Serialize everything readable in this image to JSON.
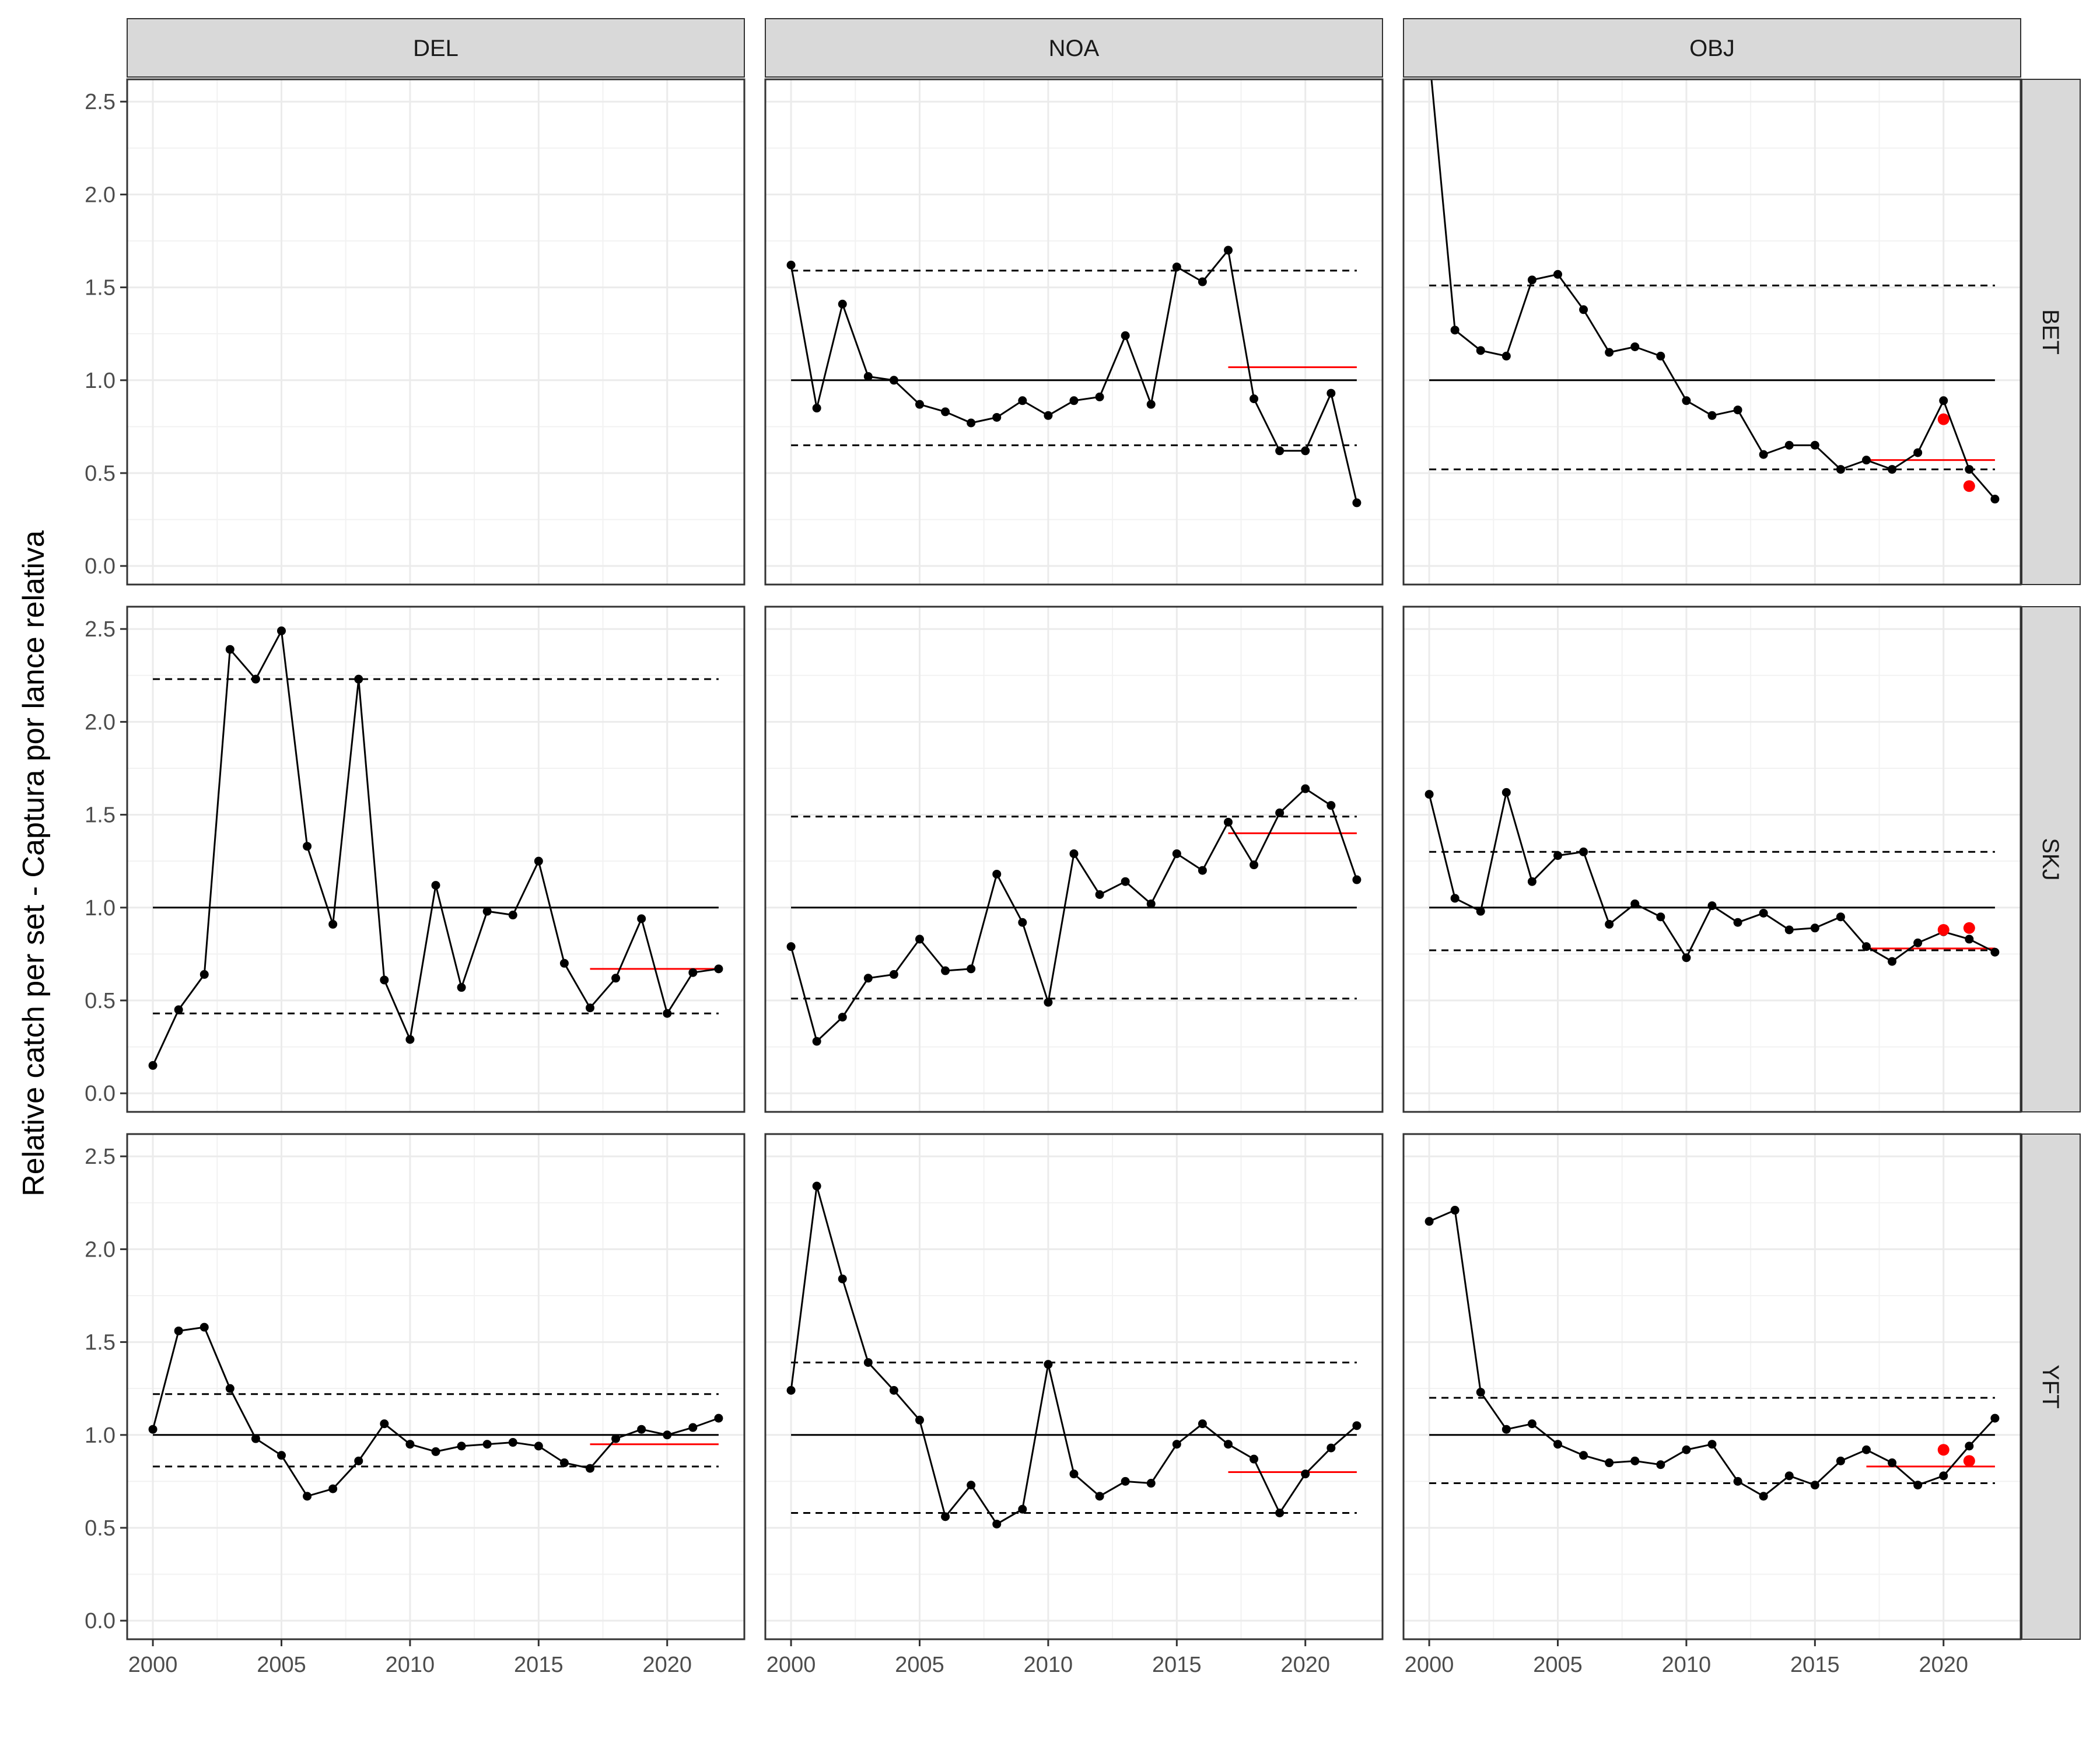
{
  "chart_data": {
    "type": "line",
    "title": "",
    "ylabel": "Relative catch per set - Captura por lance relativa",
    "xlabel": "",
    "x_ticks": [
      2000,
      2005,
      2010,
      2015,
      2020
    ],
    "y_ticks": [
      0.0,
      0.5,
      1.0,
      1.5,
      2.0,
      2.5
    ],
    "y_tick_labels": [
      "0.0",
      "0.5",
      "1.0",
      "1.5",
      "2.0",
      "2.5"
    ],
    "xlim": [
      1999,
      2023
    ],
    "ylim": [
      -0.1,
      2.62
    ],
    "grid": true,
    "colors": {
      "series": "#000000",
      "highlight": "#ff0000",
      "strip": "#d9d9d9",
      "grid": "#ebebeb"
    },
    "column_labels": [
      "DEL",
      "NOA",
      "OBJ"
    ],
    "row_labels": [
      "BET",
      "SKJ",
      "YFT"
    ],
    "x": [
      2000,
      2001,
      2002,
      2003,
      2004,
      2005,
      2006,
      2007,
      2008,
      2009,
      2010,
      2011,
      2012,
      2013,
      2014,
      2015,
      2016,
      2017,
      2018,
      2019,
      2020,
      2021,
      2022
    ],
    "panels": [
      {
        "row": "BET",
        "col": "DEL",
        "values": [],
        "lower": null,
        "upper": null,
        "recent_mean": null,
        "red_points": []
      },
      {
        "row": "BET",
        "col": "NOA",
        "values": [
          1.62,
          0.85,
          1.41,
          1.02,
          1.0,
          0.87,
          0.83,
          0.77,
          0.8,
          0.89,
          0.81,
          0.89,
          0.91,
          1.24,
          0.87,
          1.61,
          1.53,
          1.7,
          0.9,
          0.62,
          0.62,
          0.93,
          0.34
        ],
        "lower": 0.65,
        "upper": 1.59,
        "recent_mean": 1.07,
        "red_points": []
      },
      {
        "row": "BET",
        "col": "OBJ",
        "values": [
          2.75,
          1.27,
          1.16,
          1.13,
          1.54,
          1.57,
          1.38,
          1.15,
          1.18,
          1.13,
          0.89,
          0.81,
          0.84,
          0.6,
          0.65,
          0.65,
          0.52,
          0.57,
          0.52,
          0.61,
          0.89,
          0.52,
          0.36
        ],
        "lower": 0.52,
        "upper": 1.51,
        "recent_mean": 0.57,
        "red_points": [
          {
            "x": 2020,
            "y": 0.79
          },
          {
            "x": 2021,
            "y": 0.43
          }
        ]
      },
      {
        "row": "SKJ",
        "col": "DEL",
        "values": [
          0.15,
          0.45,
          0.64,
          2.39,
          2.23,
          2.49,
          1.33,
          0.91,
          2.23,
          0.61,
          0.29,
          1.12,
          0.57,
          0.98,
          0.96,
          1.25,
          0.7,
          0.46,
          0.62,
          0.94,
          0.43,
          0.65,
          0.67
        ],
        "lower": 0.43,
        "upper": 2.23,
        "recent_mean": 0.67,
        "red_points": []
      },
      {
        "row": "SKJ",
        "col": "NOA",
        "values": [
          0.79,
          0.28,
          0.41,
          0.62,
          0.64,
          0.83,
          0.66,
          0.67,
          1.18,
          0.92,
          0.49,
          1.29,
          1.07,
          1.14,
          1.02,
          1.29,
          1.2,
          1.46,
          1.23,
          1.51,
          1.64,
          1.55,
          1.15
        ],
        "lower": 0.51,
        "upper": 1.49,
        "recent_mean": 1.4,
        "red_points": []
      },
      {
        "row": "SKJ",
        "col": "OBJ",
        "values": [
          1.61,
          1.05,
          0.98,
          1.62,
          1.14,
          1.28,
          1.3,
          0.91,
          1.02,
          0.95,
          0.73,
          1.01,
          0.92,
          0.97,
          0.88,
          0.89,
          0.95,
          0.79,
          0.71,
          0.81,
          0.87,
          0.83,
          0.76
        ],
        "lower": 0.77,
        "upper": 1.3,
        "recent_mean": 0.78,
        "red_points": [
          {
            "x": 2020,
            "y": 0.88
          },
          {
            "x": 2021,
            "y": 0.89
          }
        ]
      },
      {
        "row": "YFT",
        "col": "DEL",
        "values": [
          1.03,
          1.56,
          1.58,
          1.25,
          0.98,
          0.89,
          0.67,
          0.71,
          0.86,
          1.06,
          0.95,
          0.91,
          0.94,
          0.95,
          0.96,
          0.94,
          0.85,
          0.82,
          0.98,
          1.03,
          1.0,
          1.04,
          1.09
        ],
        "lower": 0.83,
        "upper": 1.22,
        "recent_mean": 0.95,
        "red_points": []
      },
      {
        "row": "YFT",
        "col": "NOA",
        "values": [
          1.24,
          2.34,
          1.84,
          1.39,
          1.24,
          1.08,
          0.56,
          0.73,
          0.52,
          0.6,
          1.38,
          0.79,
          0.67,
          0.75,
          0.74,
          0.95,
          1.06,
          0.95,
          0.87,
          0.58,
          0.79,
          0.93,
          1.05
        ],
        "lower": 0.58,
        "upper": 1.39,
        "recent_mean": 0.8,
        "red_points": []
      },
      {
        "row": "YFT",
        "col": "OBJ",
        "values": [
          2.15,
          2.21,
          1.23,
          1.03,
          1.06,
          0.95,
          0.89,
          0.85,
          0.86,
          0.84,
          0.92,
          0.95,
          0.75,
          0.67,
          0.78,
          0.73,
          0.86,
          0.92,
          0.85,
          0.73,
          0.78,
          0.94,
          1.09
        ],
        "lower": 0.74,
        "upper": 1.2,
        "recent_mean": 0.83,
        "red_points": [
          {
            "x": 2020,
            "y": 0.92
          },
          {
            "x": 2021,
            "y": 0.86
          }
        ]
      }
    ]
  }
}
